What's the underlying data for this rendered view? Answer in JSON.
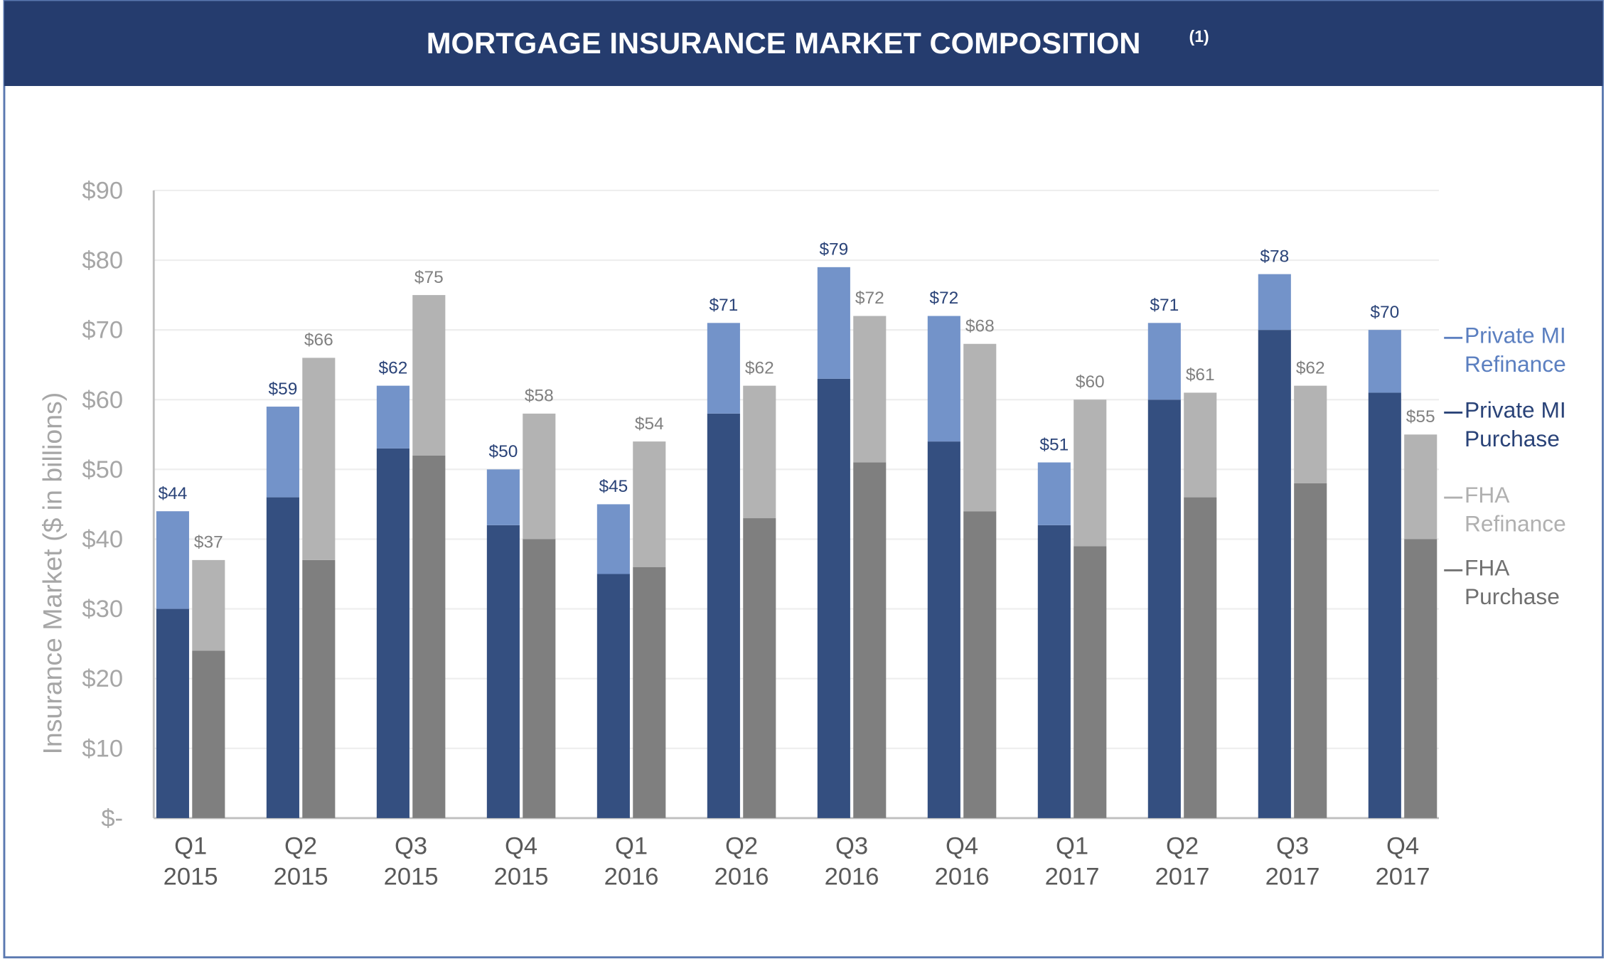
{
  "chart_data": {
    "type": "grouped-stacked-bar",
    "title": "MORTGAGE INSURANCE MARKET COMPOSITION",
    "title_note": "(1)",
    "y_label": "Insurance Market ($ in billions)",
    "categories": [
      [
        "Q1",
        "2015"
      ],
      [
        "Q2",
        "2015"
      ],
      [
        "Q3",
        "2015"
      ],
      [
        "Q4",
        "2015"
      ],
      [
        "Q1",
        "2016"
      ],
      [
        "Q2",
        "2016"
      ],
      [
        "Q3",
        "2016"
      ],
      [
        "Q4",
        "2016"
      ],
      [
        "Q1",
        "2017"
      ],
      [
        "Q2",
        "2017"
      ],
      [
        "Q3",
        "2017"
      ],
      [
        "Q4",
        "2017"
      ]
    ],
    "series": [
      {
        "name": "Private MI Refinance",
        "color": "#7393c9",
        "legend_color": "#5b7fc0",
        "stack": 0,
        "values": [
          14,
          13,
          9,
          8,
          10,
          13,
          16,
          18,
          9,
          11,
          8,
          9
        ]
      },
      {
        "name": "Private MI Purchase",
        "color": "#344f80",
        "legend_color": "#2a4378",
        "stack": 0,
        "values": [
          30,
          46,
          53,
          42,
          35,
          58,
          63,
          54,
          42,
          60,
          70,
          61
        ]
      },
      {
        "name": "FHA Refinance",
        "color": "#b3b3b3",
        "legend_color": "#b0b0b0",
        "stack": 1,
        "values": [
          13,
          29,
          23,
          18,
          18,
          19,
          21,
          24,
          21,
          15,
          14,
          15
        ]
      },
      {
        "name": "FHA Purchase",
        "color": "#7f7f7f",
        "legend_color": "#707070",
        "stack": 1,
        "values": [
          24,
          37,
          52,
          40,
          36,
          43,
          51,
          44,
          39,
          46,
          48,
          40
        ]
      }
    ],
    "totals": [
      {
        "color": "#2a4378",
        "values": [
          44,
          59,
          62,
          50,
          45,
          71,
          79,
          72,
          51,
          71,
          78,
          70
        ],
        "value_labels": [
          "$44",
          "$59",
          "$62",
          "$50",
          "$45",
          "$71",
          "$79",
          "$72",
          "$51",
          "$71",
          "$78",
          "$70"
        ]
      },
      {
        "color": "#808080",
        "values": [
          37,
          66,
          75,
          58,
          54,
          62,
          72,
          68,
          60,
          61,
          62,
          55
        ],
        "value_labels": [
          "$37",
          "$66",
          "$75",
          "$58",
          "$54",
          "$62",
          "$72",
          "$68",
          "$60",
          "$61",
          "$62",
          "$55"
        ]
      }
    ],
    "ylim": [
      0,
      90
    ],
    "yticks": [
      {
        "value": 0,
        "label": "$-"
      },
      {
        "value": 10,
        "label": "$10"
      },
      {
        "value": 20,
        "label": "$20"
      },
      {
        "value": 30,
        "label": "$30"
      },
      {
        "value": 40,
        "label": "$40"
      },
      {
        "value": 50,
        "label": "$50"
      },
      {
        "value": 60,
        "label": "$60"
      },
      {
        "value": 70,
        "label": "$70"
      },
      {
        "value": 80,
        "label": "$80"
      },
      {
        "value": 90,
        "label": "$90"
      }
    ],
    "grid": true,
    "legend": "right"
  }
}
